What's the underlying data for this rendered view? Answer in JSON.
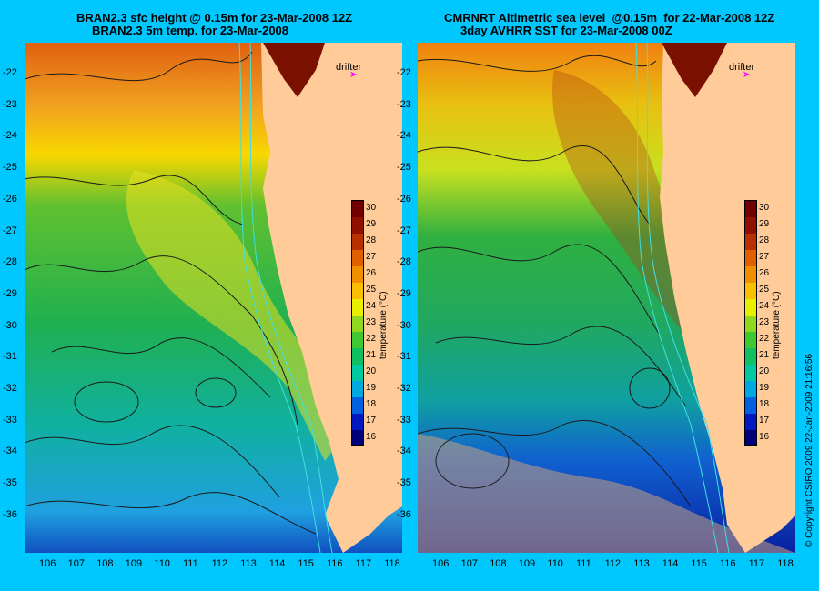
{
  "left_panel": {
    "title_line1": "BRAN2.3 sfc height @ 0.15m for 23-Mar-2008 12Z",
    "title_line2": "BRAN2.3 5m temp. for 23-Mar-2008"
  },
  "right_panel": {
    "title_line1": "CMRNRT Altimetric sea level  @0.15m  for 22-Mar-2008 12Z",
    "title_line2": "3day AVHRR SST for 23-Mar-2008 00Z"
  },
  "legend": {
    "drifter_label": "drifter",
    "drifter_color": "#ff00ff"
  },
  "colorbar": {
    "label": "temperature (°C)",
    "min": 15.5,
    "max": 30.5,
    "ticks": [
      "16",
      "17",
      "18",
      "19",
      "20",
      "21",
      "22",
      "23",
      "24",
      "25",
      "26",
      "27",
      "28",
      "29",
      "30"
    ],
    "colors": [
      "#00007a",
      "#0018c0",
      "#0060e0",
      "#00a8e0",
      "#00c8a0",
      "#10c060",
      "#40c830",
      "#90d820",
      "#e8f000",
      "#f8c000",
      "#f09000",
      "#e06000",
      "#b83000",
      "#901000",
      "#700000"
    ]
  },
  "axes": {
    "lat_ticks": [
      "-22",
      "-23",
      "-24",
      "-25",
      "-26",
      "-27",
      "-28",
      "-29",
      "-30",
      "-31",
      "-32",
      "-33",
      "-34",
      "-35",
      "-36"
    ],
    "lon_ticks": [
      "106",
      "107",
      "108",
      "109",
      "110",
      "111",
      "112",
      "113",
      "114",
      "115",
      "116",
      "117",
      "118"
    ]
  },
  "land_color": "#ffcc99",
  "background_color": "#00c8ff",
  "credit": "© Copyright CSIRO 2009    22-Jan-2009 21:16:56"
}
